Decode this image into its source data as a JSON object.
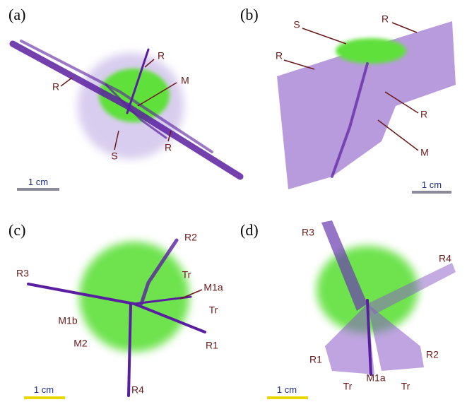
{
  "panels": [
    {
      "label": "(a)",
      "annotations": [
        "R",
        "R",
        "M",
        "S",
        "R"
      ],
      "scale": "1 cm"
    },
    {
      "label": "(b)",
      "annotations": [
        "S",
        "R",
        "R",
        "R",
        "M"
      ],
      "scale": "1 cm"
    },
    {
      "label": "(c)",
      "annotations": [
        "R2",
        "R3",
        "Tr",
        "M1a",
        "Tr",
        "M1b",
        "M2",
        "R1",
        "R4"
      ],
      "scale": "1 cm"
    },
    {
      "label": "(d)",
      "annotations": [
        "R3",
        "R4",
        "R1",
        "R2",
        "M1a",
        "Tr",
        "Tr"
      ],
      "scale": "1 cm"
    }
  ]
}
